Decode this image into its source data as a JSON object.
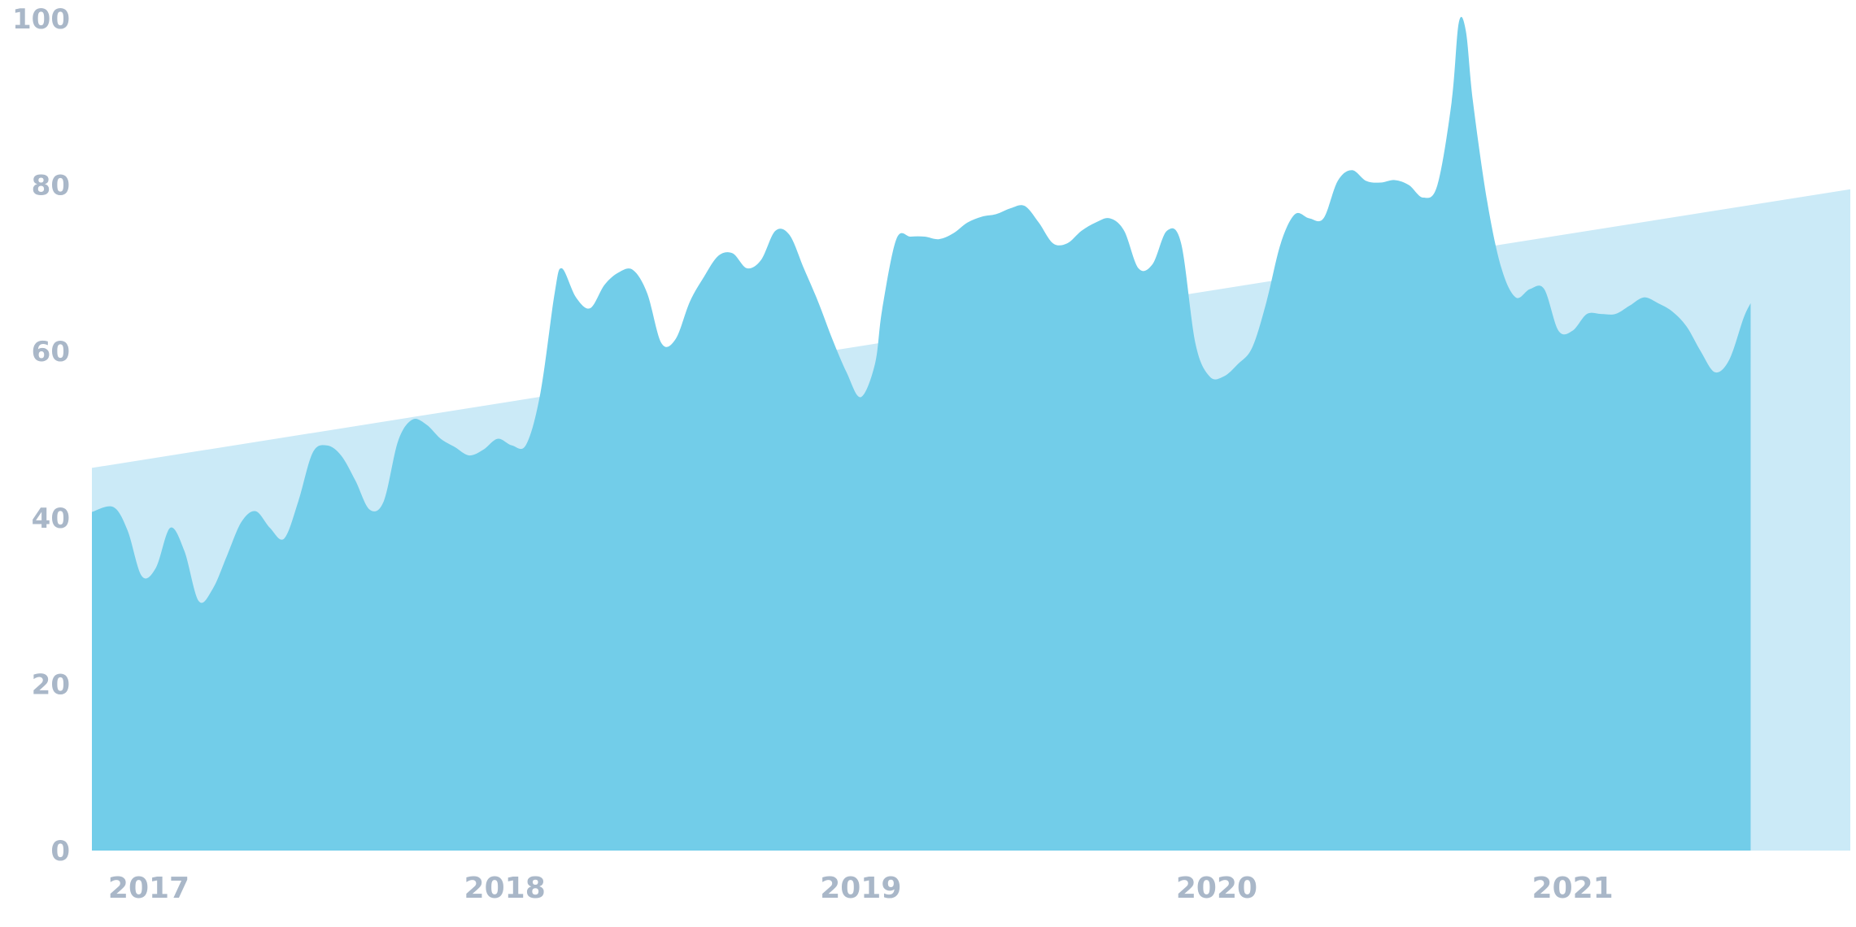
{
  "chart_data": {
    "type": "area",
    "title": "",
    "xlabel": "",
    "ylabel": "",
    "ylim": [
      0,
      100
    ],
    "y_ticks": [
      "0",
      "20",
      "40",
      "60",
      "80",
      "100"
    ],
    "x_ticks": [
      "2017",
      "2018",
      "2019",
      "2020",
      "2021"
    ],
    "x_tick_values": [
      2017.0,
      2018.0,
      2019.0,
      2020.0,
      2021.0
    ],
    "xlim": [
      2016.92,
      2021.86
    ],
    "grid": false,
    "legend": "none",
    "colors": {
      "series": "#72cde9",
      "trend": "#cbeaf7",
      "tick_text": "#a9b7c8"
    },
    "series": [
      {
        "values": [
          [
            2016.92,
            40.7
          ],
          [
            2016.98,
            41.3
          ],
          [
            2017.02,
            38.5
          ],
          [
            2017.06,
            33.0
          ],
          [
            2017.1,
            34.0
          ],
          [
            2017.14,
            38.8
          ],
          [
            2017.18,
            36.0
          ],
          [
            2017.22,
            30.0
          ],
          [
            2017.26,
            31.5
          ],
          [
            2017.3,
            35.5
          ],
          [
            2017.34,
            39.5
          ],
          [
            2017.38,
            40.8
          ],
          [
            2017.42,
            38.8
          ],
          [
            2017.46,
            37.5
          ],
          [
            2017.5,
            42.0
          ],
          [
            2017.54,
            47.8
          ],
          [
            2017.58,
            48.7
          ],
          [
            2017.62,
            47.5
          ],
          [
            2017.66,
            44.5
          ],
          [
            2017.7,
            41.0
          ],
          [
            2017.74,
            42.0
          ],
          [
            2017.78,
            49.2
          ],
          [
            2017.82,
            51.8
          ],
          [
            2017.86,
            51.2
          ],
          [
            2017.9,
            49.5
          ],
          [
            2017.94,
            48.5
          ],
          [
            2017.98,
            47.5
          ],
          [
            2018.02,
            48.2
          ],
          [
            2018.06,
            49.5
          ],
          [
            2018.1,
            48.7
          ],
          [
            2018.14,
            48.8
          ],
          [
            2018.18,
            55.0
          ],
          [
            2018.22,
            67.0
          ],
          [
            2018.24,
            70.0
          ],
          [
            2018.28,
            66.5
          ],
          [
            2018.32,
            65.2
          ],
          [
            2018.36,
            68.0
          ],
          [
            2018.4,
            69.5
          ],
          [
            2018.44,
            69.8
          ],
          [
            2018.48,
            67.0
          ],
          [
            2018.52,
            61.0
          ],
          [
            2018.56,
            61.5
          ],
          [
            2018.6,
            66.0
          ],
          [
            2018.64,
            69.0
          ],
          [
            2018.68,
            71.5
          ],
          [
            2018.72,
            71.8
          ],
          [
            2018.76,
            70.0
          ],
          [
            2018.8,
            71.0
          ],
          [
            2018.84,
            74.5
          ],
          [
            2018.88,
            74.0
          ],
          [
            2018.92,
            70.0
          ],
          [
            2018.96,
            66.0
          ],
          [
            2019.0,
            61.5
          ],
          [
            2019.04,
            57.5
          ],
          [
            2019.08,
            54.5
          ],
          [
            2019.12,
            58.5
          ],
          [
            2019.14,
            65.0
          ],
          [
            2019.18,
            73.5
          ],
          [
            2019.22,
            73.8
          ],
          [
            2019.26,
            73.8
          ],
          [
            2019.3,
            73.5
          ],
          [
            2019.34,
            74.2
          ],
          [
            2019.38,
            75.5
          ],
          [
            2019.42,
            76.2
          ],
          [
            2019.46,
            76.5
          ],
          [
            2019.5,
            77.2
          ],
          [
            2019.54,
            77.5
          ],
          [
            2019.58,
            75.5
          ],
          [
            2019.62,
            73.0
          ],
          [
            2019.66,
            73.0
          ],
          [
            2019.7,
            74.5
          ],
          [
            2019.74,
            75.5
          ],
          [
            2019.78,
            76.0
          ],
          [
            2019.82,
            74.5
          ],
          [
            2019.86,
            70.0
          ],
          [
            2019.9,
            70.5
          ],
          [
            2019.94,
            74.5
          ],
          [
            2019.98,
            73.0
          ],
          [
            2020.02,
            61.0
          ],
          [
            2020.06,
            57.0
          ],
          [
            2020.1,
            57.0
          ],
          [
            2020.14,
            58.5
          ],
          [
            2020.18,
            60.5
          ],
          [
            2020.22,
            66.0
          ],
          [
            2020.26,
            73.0
          ],
          [
            2020.3,
            76.5
          ],
          [
            2020.34,
            76.0
          ],
          [
            2020.38,
            76.0
          ],
          [
            2020.42,
            80.5
          ],
          [
            2020.46,
            81.8
          ],
          [
            2020.5,
            80.5
          ],
          [
            2020.54,
            80.3
          ],
          [
            2020.58,
            80.6
          ],
          [
            2020.62,
            80.0
          ],
          [
            2020.66,
            78.5
          ],
          [
            2020.7,
            80.0
          ],
          [
            2020.74,
            90.0
          ],
          [
            2020.76,
            99.5
          ],
          [
            2020.78,
            98.5
          ],
          [
            2020.8,
            90.0
          ],
          [
            2020.84,
            78.0
          ],
          [
            2020.88,
            70.0
          ],
          [
            2020.92,
            66.5
          ],
          [
            2020.96,
            67.5
          ],
          [
            2021.0,
            67.5
          ],
          [
            2021.04,
            62.5
          ],
          [
            2021.08,
            62.5
          ],
          [
            2021.12,
            64.5
          ],
          [
            2021.16,
            64.5
          ],
          [
            2021.2,
            64.5
          ],
          [
            2021.24,
            65.5
          ],
          [
            2021.28,
            66.5
          ],
          [
            2021.32,
            65.8
          ],
          [
            2021.36,
            64.8
          ],
          [
            2021.4,
            63.0
          ],
          [
            2021.44,
            60.0
          ],
          [
            2021.48,
            57.5
          ],
          [
            2021.52,
            59.0
          ],
          [
            2021.56,
            64.0
          ],
          [
            2021.58,
            65.8
          ]
        ]
      }
    ],
    "trend": {
      "x": [
        2016.92,
        2021.86
      ],
      "y": [
        46.0,
        79.5
      ]
    }
  }
}
